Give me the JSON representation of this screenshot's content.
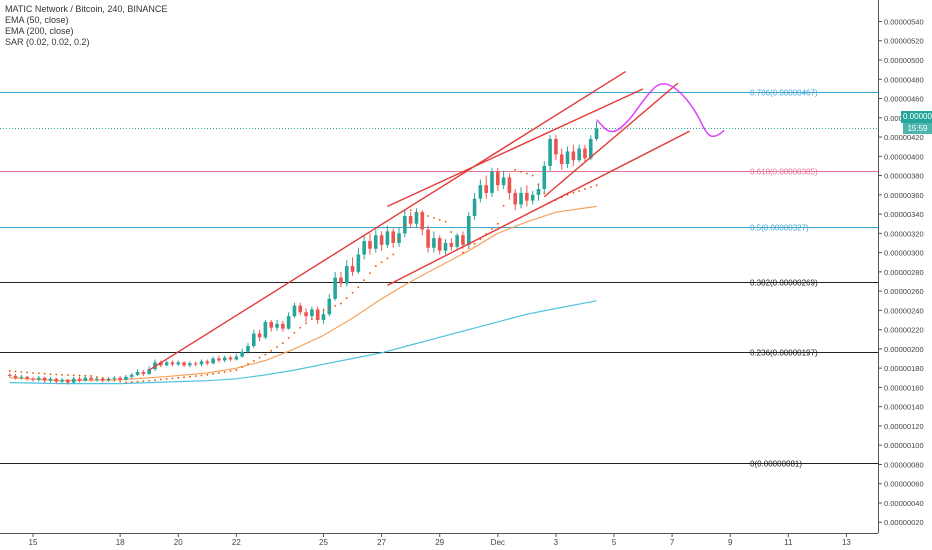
{
  "legend": {
    "title": "MATIC Network / Bitcoin, 240, BINANCE",
    "indicators": [
      "EMA (50, close)",
      "EMA (200, close)",
      "SAR (0.02, 0.02, 0.2)"
    ]
  },
  "colors": {
    "up": "#26a69a",
    "down": "#ef5350",
    "ema50": "#f7a35c",
    "ema200": "#4fc3e0",
    "sar": "#e65100",
    "channel": "#e53935",
    "forecast": "#e040fb",
    "fib_blue": "#42a5d8",
    "fib_pink": "#e57396",
    "fib_black": "#222222"
  },
  "price_tag": {
    "value": "0.00000429",
    "countdown": "15:59"
  },
  "chart_data": {
    "type": "candlestick",
    "title": "MATIC Network / Bitcoin, 240, BINANCE",
    "y_ticks": [
      "0.00000000",
      "0.00000020",
      "0.00000040",
      "0.00000060",
      "0.00000080",
      "0.00000100",
      "0.00000120",
      "0.00000140",
      "0.00000160",
      "0.00000180",
      "0.00000200",
      "0.00000220",
      "0.00000240",
      "0.00000260",
      "0.00000280",
      "0.00000300",
      "0.00000320",
      "0.00000340",
      "0.00000360",
      "0.00000380",
      "0.00000400",
      "0.00000420",
      "0.00000440",
      "0.00000460",
      "0.00000480",
      "0.00000500",
      "0.00000520",
      "0.00000540"
    ],
    "ylim": [
      0,
      5.5e-06
    ],
    "x_ticks": [
      {
        "label": "15",
        "day": 15
      },
      {
        "label": "18",
        "day": 18
      },
      {
        "label": "20",
        "day": 20
      },
      {
        "label": "22",
        "day": 22
      },
      {
        "label": "25",
        "day": 25
      },
      {
        "label": "27",
        "day": 27
      },
      {
        "label": "29",
        "day": 29
      },
      {
        "label": "Dec",
        "day": 31
      },
      {
        "label": "3",
        "day": 33
      },
      {
        "label": "5",
        "day": 35
      },
      {
        "label": "7",
        "day": 37
      },
      {
        "label": "9",
        "day": 39
      },
      {
        "label": "11",
        "day": 41
      },
      {
        "label": "13",
        "day": 43
      }
    ],
    "fib_levels": [
      {
        "label": "0.786(0.00000467)",
        "value": 4.67e-06,
        "color": "fib_blue"
      },
      {
        "label": "0.618(0.00000385)",
        "value": 3.85e-06,
        "color": "fib_pink"
      },
      {
        "label": "0.5(0.00000327)",
        "value": 3.27e-06,
        "color": "fib_blue"
      },
      {
        "label": "0.382(0.00000269)",
        "value": 2.69e-06,
        "color": "fib_black"
      },
      {
        "label": "0.236(0.00000197)",
        "value": 1.97e-06,
        "color": "fib_black"
      },
      {
        "label": "0(0.00000081)",
        "value": 8.1e-07,
        "color": "fib_black"
      }
    ],
    "last_price": 4.29e-06,
    "candles": [
      [
        14.2,
        1.73,
        1.72,
        1.75,
        1.7
      ],
      [
        14.4,
        1.72,
        1.7,
        1.74,
        1.68
      ],
      [
        14.6,
        1.7,
        1.71,
        1.73,
        1.68
      ],
      [
        14.8,
        1.71,
        1.69,
        1.72,
        1.67
      ],
      [
        15.0,
        1.69,
        1.68,
        1.71,
        1.66
      ],
      [
        15.2,
        1.68,
        1.7,
        1.72,
        1.66
      ],
      [
        15.4,
        1.7,
        1.67,
        1.71,
        1.65
      ],
      [
        15.6,
        1.67,
        1.69,
        1.71,
        1.65
      ],
      [
        15.8,
        1.69,
        1.66,
        1.7,
        1.64
      ],
      [
        16.0,
        1.66,
        1.68,
        1.7,
        1.64
      ],
      [
        16.2,
        1.68,
        1.65,
        1.69,
        1.63
      ],
      [
        16.4,
        1.65,
        1.69,
        1.71,
        1.64
      ],
      [
        16.6,
        1.69,
        1.67,
        1.71,
        1.65
      ],
      [
        16.8,
        1.67,
        1.7,
        1.72,
        1.66
      ],
      [
        17.0,
        1.7,
        1.68,
        1.72,
        1.66
      ],
      [
        17.2,
        1.68,
        1.69,
        1.71,
        1.66
      ],
      [
        17.4,
        1.69,
        1.67,
        1.71,
        1.65
      ],
      [
        17.6,
        1.67,
        1.69,
        1.71,
        1.66
      ],
      [
        17.8,
        1.69,
        1.7,
        1.72,
        1.67
      ],
      [
        18.0,
        1.7,
        1.68,
        1.72,
        1.66
      ],
      [
        18.2,
        1.68,
        1.71,
        1.73,
        1.67
      ],
      [
        18.4,
        1.71,
        1.73,
        1.75,
        1.69
      ],
      [
        18.6,
        1.73,
        1.76,
        1.79,
        1.72
      ],
      [
        18.8,
        1.76,
        1.74,
        1.78,
        1.72
      ],
      [
        19.0,
        1.74,
        1.79,
        1.82,
        1.73
      ],
      [
        19.2,
        1.79,
        1.86,
        1.89,
        1.77
      ],
      [
        19.4,
        1.86,
        1.83,
        1.88,
        1.81
      ],
      [
        19.6,
        1.83,
        1.86,
        1.88,
        1.82
      ],
      [
        19.8,
        1.86,
        1.84,
        1.88,
        1.82
      ],
      [
        20.0,
        1.84,
        1.86,
        1.88,
        1.82
      ],
      [
        20.2,
        1.86,
        1.83,
        1.87,
        1.81
      ],
      [
        20.4,
        1.83,
        1.85,
        1.87,
        1.81
      ],
      [
        20.6,
        1.85,
        1.84,
        1.87,
        1.82
      ],
      [
        20.8,
        1.84,
        1.87,
        1.89,
        1.82
      ],
      [
        21.0,
        1.87,
        1.85,
        1.89,
        1.83
      ],
      [
        21.2,
        1.85,
        1.9,
        1.92,
        1.84
      ],
      [
        21.4,
        1.9,
        1.88,
        1.93,
        1.86
      ],
      [
        21.6,
        1.88,
        1.91,
        1.93,
        1.86
      ],
      [
        21.8,
        1.91,
        1.89,
        1.93,
        1.87
      ],
      [
        22.0,
        1.89,
        1.92,
        1.95,
        1.88
      ],
      [
        22.2,
        1.92,
        1.97,
        2.0,
        1.91
      ],
      [
        22.4,
        1.97,
        2.03,
        2.06,
        1.95
      ],
      [
        22.6,
        2.03,
        2.16,
        2.2,
        2.01
      ],
      [
        22.8,
        2.16,
        2.12,
        2.2,
        2.08
      ],
      [
        23.0,
        2.12,
        2.28,
        2.3,
        2.1
      ],
      [
        23.2,
        2.28,
        2.22,
        2.3,
        2.18
      ],
      [
        23.4,
        2.22,
        2.26,
        2.3,
        2.19
      ],
      [
        23.6,
        2.26,
        2.21,
        2.29,
        2.18
      ],
      [
        23.8,
        2.21,
        2.34,
        2.38,
        2.2
      ],
      [
        24.0,
        2.34,
        2.45,
        2.48,
        2.32
      ],
      [
        24.2,
        2.45,
        2.38,
        2.48,
        2.35
      ],
      [
        24.4,
        2.38,
        2.34,
        2.42,
        2.28
      ],
      [
        24.6,
        2.34,
        2.41,
        2.44,
        2.3
      ],
      [
        24.8,
        2.41,
        2.3,
        2.44,
        2.26
      ],
      [
        25.0,
        2.3,
        2.36,
        2.42,
        2.26
      ],
      [
        25.2,
        2.36,
        2.52,
        2.57,
        2.34
      ],
      [
        25.4,
        2.52,
        2.74,
        2.8,
        2.5
      ],
      [
        25.6,
        2.74,
        2.68,
        2.8,
        2.64
      ],
      [
        25.8,
        2.68,
        2.86,
        2.92,
        2.65
      ],
      [
        26.0,
        2.86,
        2.8,
        2.95,
        2.76
      ],
      [
        26.2,
        2.8,
        2.98,
        3.05,
        2.78
      ],
      [
        26.4,
        2.98,
        3.12,
        3.18,
        2.93
      ],
      [
        26.6,
        3.12,
        3.04,
        3.2,
        2.98
      ],
      [
        26.8,
        3.04,
        3.18,
        3.24,
        3.0
      ],
      [
        27.0,
        3.18,
        3.08,
        3.22,
        3.02
      ],
      [
        27.2,
        3.08,
        3.22,
        3.28,
        3.05
      ],
      [
        27.4,
        3.22,
        3.1,
        3.25,
        3.05
      ],
      [
        27.6,
        3.1,
        3.2,
        3.26,
        3.06
      ],
      [
        27.8,
        3.2,
        3.38,
        3.45,
        3.16
      ],
      [
        28.0,
        3.38,
        3.3,
        3.42,
        3.26
      ],
      [
        28.2,
        3.3,
        3.42,
        3.46,
        3.26
      ],
      [
        28.4,
        3.42,
        3.24,
        3.44,
        3.18
      ],
      [
        28.6,
        3.24,
        3.05,
        3.28,
        3.0
      ],
      [
        28.8,
        3.05,
        3.15,
        3.22,
        3.0
      ],
      [
        29.0,
        3.15,
        3.02,
        3.18,
        2.98
      ],
      [
        29.2,
        3.02,
        3.1,
        3.14,
        2.98
      ],
      [
        29.4,
        3.1,
        3.06,
        3.15,
        3.02
      ],
      [
        29.6,
        3.06,
        3.18,
        3.2,
        3.04
      ],
      [
        29.8,
        3.18,
        3.08,
        3.22,
        3.04
      ],
      [
        30.0,
        3.08,
        3.38,
        3.42,
        3.06
      ],
      [
        30.2,
        3.38,
        3.56,
        3.62,
        3.34
      ],
      [
        30.4,
        3.56,
        3.7,
        3.76,
        3.52
      ],
      [
        30.6,
        3.7,
        3.62,
        3.8,
        3.56
      ],
      [
        30.8,
        3.62,
        3.84,
        3.88,
        3.58
      ],
      [
        31.0,
        3.84,
        3.7,
        3.88,
        3.64
      ],
      [
        31.2,
        3.7,
        3.78,
        3.85,
        3.66
      ],
      [
        31.4,
        3.78,
        3.62,
        3.82,
        3.55
      ],
      [
        31.6,
        3.62,
        3.5,
        3.66,
        3.44
      ],
      [
        31.8,
        3.5,
        3.62,
        3.68,
        3.46
      ],
      [
        32.0,
        3.62,
        3.54,
        3.7,
        3.48
      ],
      [
        32.2,
        3.54,
        3.6,
        3.64,
        3.5
      ],
      [
        32.4,
        3.6,
        3.66,
        3.72,
        3.54
      ],
      [
        32.6,
        3.66,
        3.9,
        3.95,
        3.62
      ],
      [
        32.8,
        3.9,
        4.18,
        4.22,
        3.85
      ],
      [
        33.0,
        4.18,
        4.02,
        4.22,
        3.96
      ],
      [
        33.2,
        4.02,
        3.92,
        4.08,
        3.86
      ],
      [
        33.4,
        3.92,
        4.05,
        4.1,
        3.88
      ],
      [
        33.6,
        4.05,
        3.96,
        4.12,
        3.9
      ],
      [
        33.8,
        3.96,
        4.08,
        4.12,
        3.94
      ],
      [
        34.0,
        4.08,
        3.98,
        4.12,
        3.94
      ],
      [
        34.2,
        3.98,
        4.18,
        4.22,
        3.96
      ],
      [
        34.4,
        4.18,
        4.29,
        4.36,
        4.16
      ]
    ],
    "ema50": [
      [
        14.2,
        1.7
      ],
      [
        16,
        1.67
      ],
      [
        18,
        1.68
      ],
      [
        19.5,
        1.71
      ],
      [
        21,
        1.75
      ],
      [
        22,
        1.8
      ],
      [
        23,
        1.88
      ],
      [
        24,
        2.0
      ],
      [
        25,
        2.14
      ],
      [
        26,
        2.32
      ],
      [
        27,
        2.52
      ],
      [
        28,
        2.7
      ],
      [
        29,
        2.86
      ],
      [
        30,
        3.02
      ],
      [
        31,
        3.2
      ],
      [
        32,
        3.32
      ],
      [
        33,
        3.42
      ],
      [
        34.4,
        3.48
      ]
    ],
    "ema200": [
      [
        14.2,
        1.65
      ],
      [
        16,
        1.64
      ],
      [
        18,
        1.64
      ],
      [
        19,
        1.65
      ],
      [
        20,
        1.66
      ],
      [
        21,
        1.67
      ],
      [
        22,
        1.69
      ],
      [
        23,
        1.73
      ],
      [
        24,
        1.78
      ],
      [
        25,
        1.84
      ],
      [
        26,
        1.9
      ],
      [
        27,
        1.96
      ],
      [
        28,
        2.04
      ],
      [
        29,
        2.12
      ],
      [
        30,
        2.2
      ],
      [
        31,
        2.28
      ],
      [
        32,
        2.36
      ],
      [
        33,
        2.42
      ],
      [
        34.4,
        2.5
      ]
    ],
    "sar": [
      [
        14.2,
        1.77
      ],
      [
        15,
        1.75
      ],
      [
        16,
        1.73
      ],
      [
        17,
        1.72
      ],
      [
        18.2,
        1.65
      ],
      [
        19,
        1.67
      ],
      [
        20,
        1.7
      ],
      [
        21,
        1.73
      ],
      [
        22,
        1.78
      ],
      [
        23,
        1.94
      ],
      [
        23.6,
        2.06
      ],
      [
        24.2,
        2.22
      ],
      [
        25,
        2.4
      ],
      [
        25.6,
        2.47
      ],
      [
        26.2,
        2.64
      ],
      [
        26.8,
        2.86
      ],
      [
        27.4,
        2.98
      ],
      [
        28,
        3.44
      ],
      [
        28.6,
        3.38
      ],
      [
        29.2,
        3.32
      ],
      [
        29.8,
        3.0
      ],
      [
        30.4,
        3.14
      ],
      [
        31,
        3.3
      ],
      [
        31.6,
        3.86
      ],
      [
        32.2,
        3.8
      ],
      [
        32.8,
        3.52
      ],
      [
        33.4,
        3.6
      ],
      [
        34,
        3.66
      ],
      [
        34.4,
        3.7
      ]
    ],
    "channel_lines": [
      [
        [
          19.0,
          1.78
        ],
        [
          35.4,
          4.88
        ]
      ],
      [
        [
          27.2,
          3.48
        ],
        [
          36.0,
          4.7
        ]
      ],
      [
        [
          27.2,
          2.66
        ],
        [
          37.6,
          4.26
        ]
      ],
      [
        [
          32.6,
          3.58
        ],
        [
          37.2,
          4.76
        ]
      ]
    ],
    "forecast_path": [
      [
        34.4,
        4.38
      ],
      [
        34.9,
        4.22
      ],
      [
        35.5,
        4.36
      ],
      [
        36.1,
        4.62
      ],
      [
        36.6,
        4.78
      ],
      [
        37.2,
        4.7
      ],
      [
        37.8,
        4.48
      ],
      [
        38.2,
        4.22
      ],
      [
        38.5,
        4.2
      ],
      [
        38.8,
        4.27
      ]
    ]
  }
}
